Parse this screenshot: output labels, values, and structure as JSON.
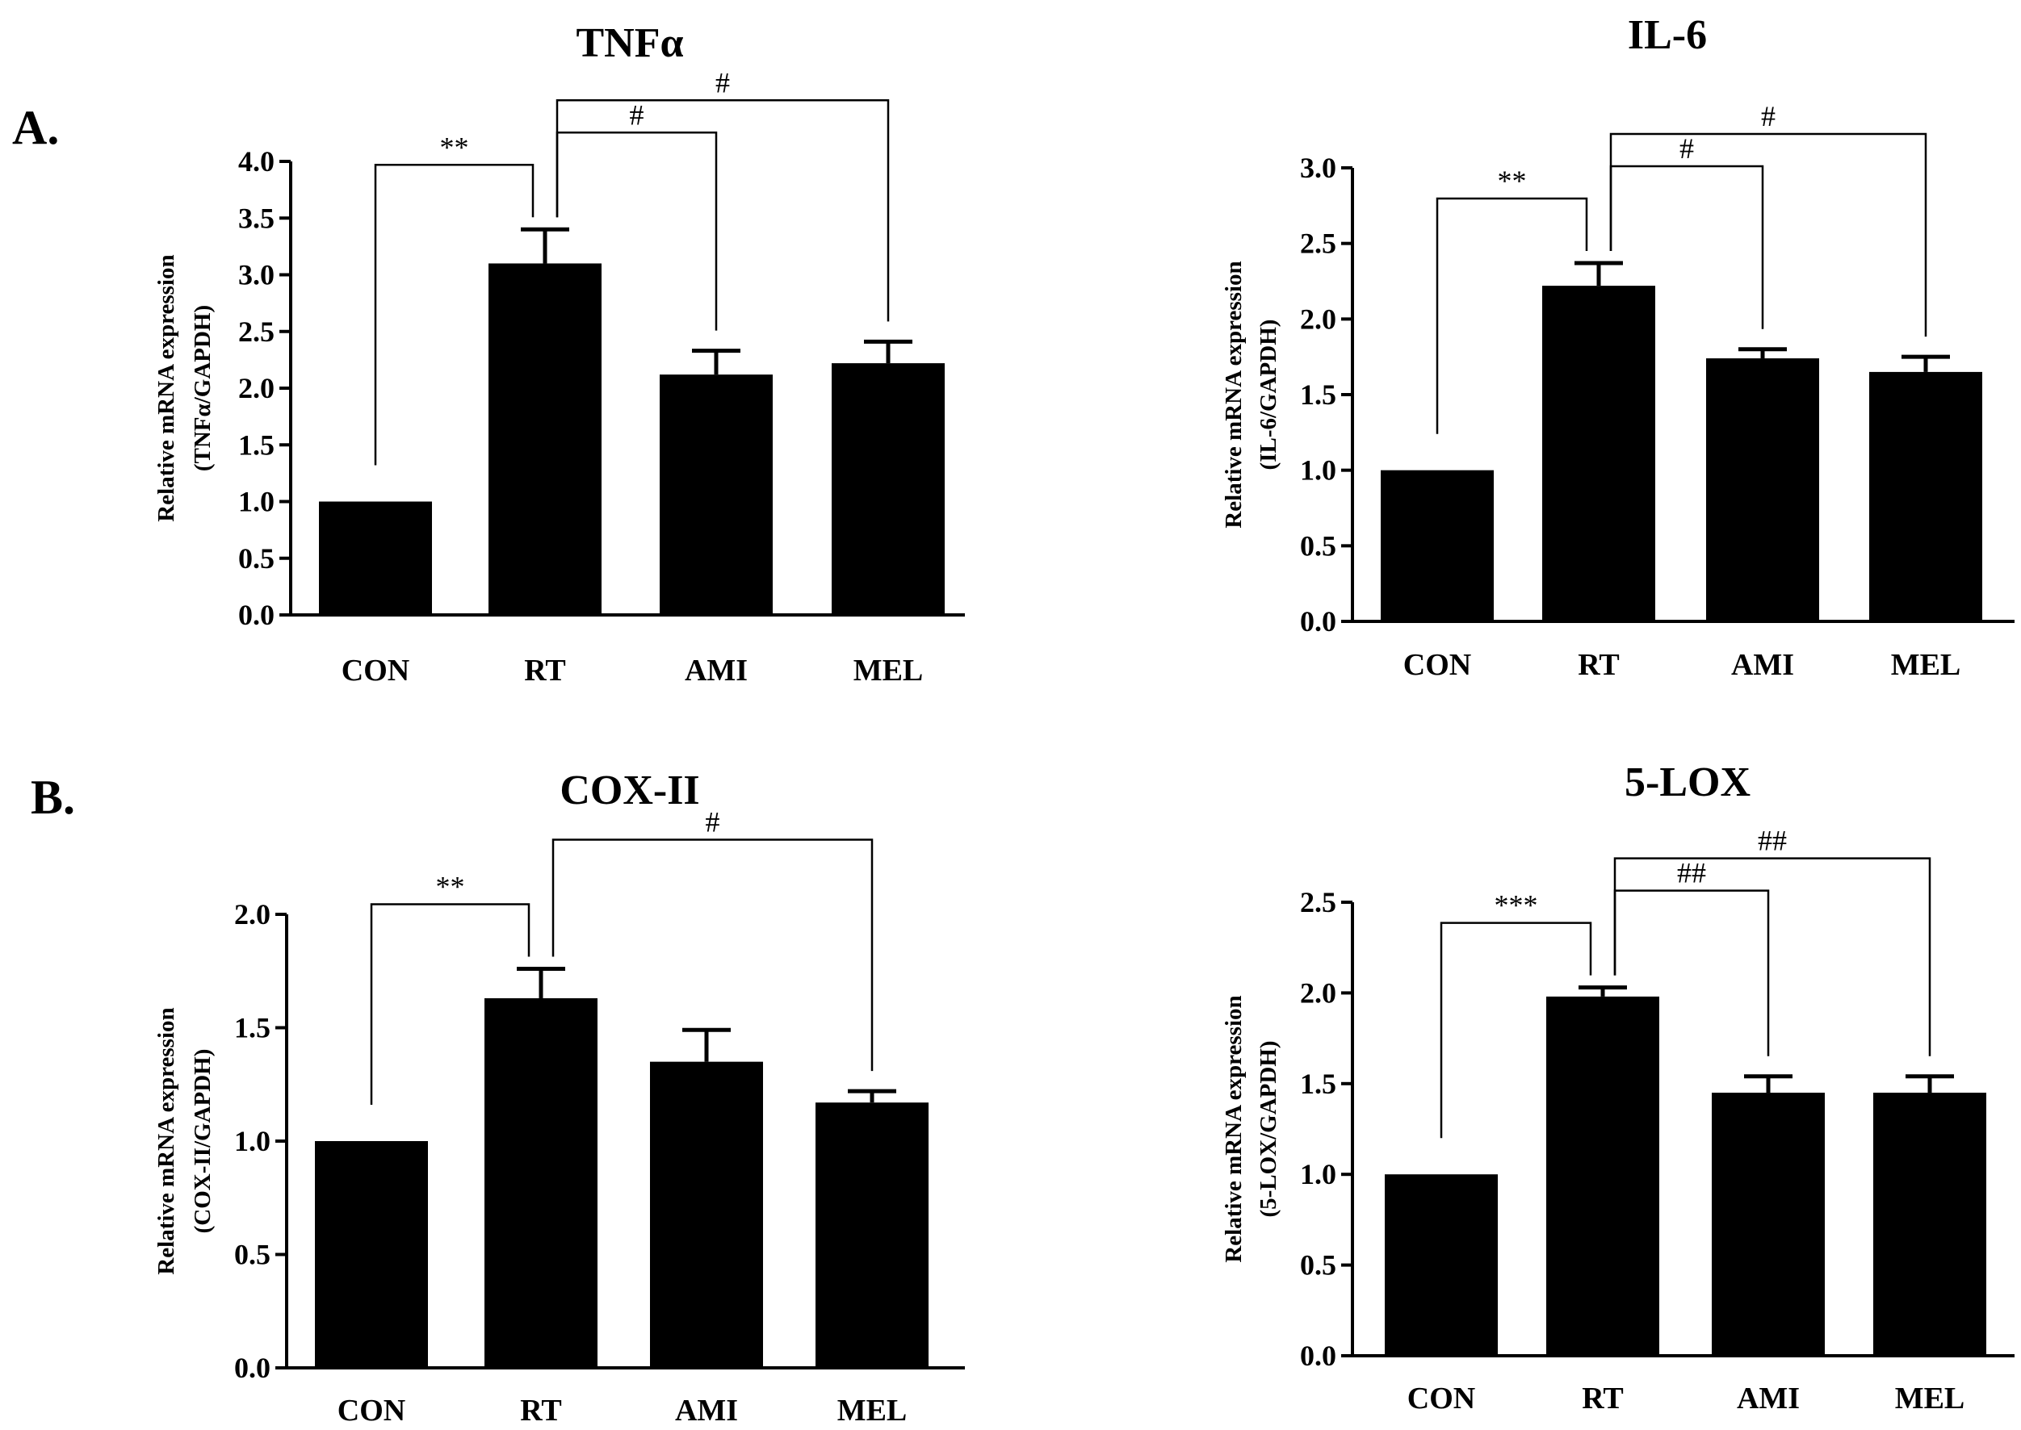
{
  "panels": [
    {
      "letter": "A."
    },
    {
      "letter": "B."
    }
  ],
  "chart_data": [
    {
      "type": "bar",
      "title": "TNFα",
      "categories": [
        "CON",
        "RT",
        "AMI",
        "MEL"
      ],
      "values": [
        1.0,
        3.1,
        2.12,
        2.22
      ],
      "errors": [
        0,
        0.3,
        0.21,
        0.19
      ],
      "ylabel": "Relative mRNA expression",
      "ylabel2": "(TNFα/GAPDH)",
      "ylim": [
        0,
        4.0
      ],
      "yticks": [
        "0.0",
        "0.5",
        "1.0",
        "1.5",
        "2.0",
        "2.5",
        "3.0",
        "3.5",
        "4.0"
      ],
      "tick_step": 0.5,
      "significance": [
        {
          "from": "CON",
          "to": "RT",
          "label": "**"
        },
        {
          "from": "RT",
          "to": "AMI",
          "label": "#"
        },
        {
          "from": "RT",
          "to": "MEL",
          "label": "#"
        }
      ]
    },
    {
      "type": "bar",
      "title": "IL-6",
      "categories": [
        "CON",
        "RT",
        "AMI",
        "MEL"
      ],
      "values": [
        1.0,
        2.22,
        1.74,
        1.65
      ],
      "errors": [
        0,
        0.15,
        0.06,
        0.1
      ],
      "ylabel": "Relative mRNA expression",
      "ylabel2": "(IL-6/GAPDH)",
      "ylim": [
        0,
        3.0
      ],
      "yticks": [
        "0.0",
        "0.5",
        "1.0",
        "1.5",
        "2.0",
        "2.5",
        "3.0"
      ],
      "tick_step": 0.5,
      "significance": [
        {
          "from": "CON",
          "to": "RT",
          "label": "**"
        },
        {
          "from": "RT",
          "to": "AMI",
          "label": "#"
        },
        {
          "from": "RT",
          "to": "MEL",
          "label": "#"
        }
      ]
    },
    {
      "type": "bar",
      "title": "COX-II",
      "categories": [
        "CON",
        "RT",
        "AMI",
        "MEL"
      ],
      "values": [
        1.0,
        1.63,
        1.35,
        1.17
      ],
      "errors": [
        0,
        0.13,
        0.14,
        0.05
      ],
      "ylabel": "Relative mRNA expression",
      "ylabel2": "(COX-II/GAPDH)",
      "ylim": [
        0,
        2.0
      ],
      "yticks": [
        "0.0",
        "0.5",
        "1.0",
        "1.5",
        "2.0"
      ],
      "tick_step": 0.5,
      "significance": [
        {
          "from": "CON",
          "to": "RT",
          "label": "**"
        },
        {
          "from": "RT",
          "to": "MEL",
          "label": "#"
        }
      ]
    },
    {
      "type": "bar",
      "title": "5-LOX",
      "categories": [
        "CON",
        "RT",
        "AMI",
        "MEL"
      ],
      "values": [
        1.0,
        1.98,
        1.45,
        1.45
      ],
      "errors": [
        0,
        0.05,
        0.09,
        0.09
      ],
      "ylabel": "Relative mRNA expression",
      "ylabel2": "(5-LOX/GAPDH)",
      "ylim": [
        0,
        2.5
      ],
      "yticks": [
        "0.0",
        "0.5",
        "1.0",
        "1.5",
        "2.0",
        "2.5"
      ],
      "tick_step": 0.5,
      "significance": [
        {
          "from": "CON",
          "to": "RT",
          "label": "***"
        },
        {
          "from": "RT",
          "to": "AMI",
          "label": "##"
        },
        {
          "from": "RT",
          "to": "MEL",
          "label": "##"
        }
      ]
    }
  ]
}
